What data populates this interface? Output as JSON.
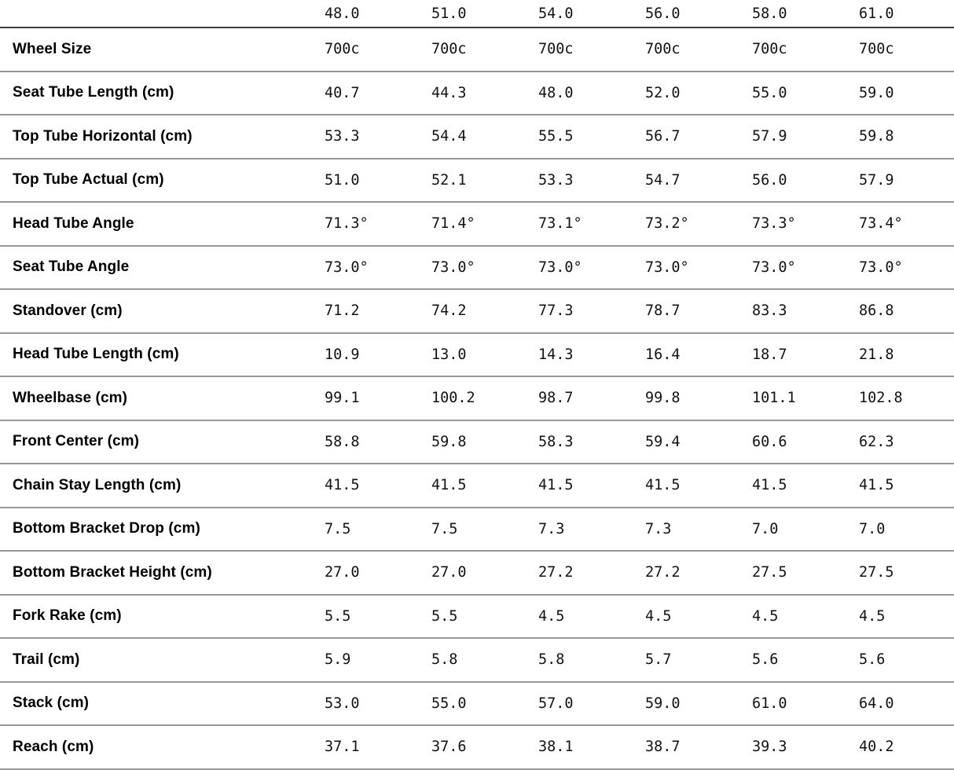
{
  "colors": {
    "background": "#ffffff",
    "header_rule": "#3d3d3d",
    "row_rule": "#979797",
    "label_text": "#000000",
    "value_text": "#131313"
  },
  "chart_data": {
    "type": "table",
    "description": "Bicycle frame geometry specification table; columns are frame sizes, rows are geometry measurements",
    "columns": [
      "48.0",
      "51.0",
      "54.0",
      "56.0",
      "58.0",
      "61.0"
    ],
    "rows": [
      {
        "label": "Wheel Size",
        "values": [
          "700c",
          "700c",
          "700c",
          "700c",
          "700c",
          "700c"
        ]
      },
      {
        "label": "Seat Tube Length (cm)",
        "values": [
          "40.7",
          "44.3",
          "48.0",
          "52.0",
          "55.0",
          "59.0"
        ]
      },
      {
        "label": "Top Tube Horizontal (cm)",
        "values": [
          "53.3",
          "54.4",
          "55.5",
          "56.7",
          "57.9",
          "59.8"
        ]
      },
      {
        "label": "Top Tube Actual (cm)",
        "values": [
          "51.0",
          "52.1",
          "53.3",
          "54.7",
          "56.0",
          "57.9"
        ]
      },
      {
        "label": "Head Tube Angle",
        "values": [
          "71.3°",
          "71.4°",
          "73.1°",
          "73.2°",
          "73.3°",
          "73.4°"
        ]
      },
      {
        "label": "Seat Tube Angle",
        "values": [
          "73.0°",
          "73.0°",
          "73.0°",
          "73.0°",
          "73.0°",
          "73.0°"
        ]
      },
      {
        "label": "Standover (cm)",
        "values": [
          "71.2",
          "74.2",
          "77.3",
          "78.7",
          "83.3",
          "86.8"
        ]
      },
      {
        "label": "Head Tube Length (cm)",
        "values": [
          "10.9",
          "13.0",
          "14.3",
          "16.4",
          "18.7",
          "21.8"
        ]
      },
      {
        "label": "Wheelbase (cm)",
        "values": [
          "99.1",
          "100.2",
          "98.7",
          "99.8",
          "101.1",
          "102.8"
        ]
      },
      {
        "label": "Front Center (cm)",
        "values": [
          "58.8",
          "59.8",
          "58.3",
          "59.4",
          "60.6",
          "62.3"
        ]
      },
      {
        "label": "Chain Stay Length (cm)",
        "values": [
          "41.5",
          "41.5",
          "41.5",
          "41.5",
          "41.5",
          "41.5"
        ]
      },
      {
        "label": "Bottom Bracket Drop (cm)",
        "values": [
          "7.5",
          "7.5",
          "7.3",
          "7.3",
          "7.0",
          "7.0"
        ]
      },
      {
        "label": "Bottom Bracket Height (cm)",
        "values": [
          "27.0",
          "27.0",
          "27.2",
          "27.2",
          "27.5",
          "27.5"
        ]
      },
      {
        "label": "Fork Rake (cm)",
        "values": [
          "5.5",
          "5.5",
          "4.5",
          "4.5",
          "4.5",
          "4.5"
        ]
      },
      {
        "label": "Trail (cm)",
        "values": [
          "5.9",
          "5.8",
          "5.8",
          "5.7",
          "5.6",
          "5.6"
        ]
      },
      {
        "label": "Stack (cm)",
        "values": [
          "53.0",
          "55.0",
          "57.0",
          "59.0",
          "61.0",
          "64.0"
        ]
      },
      {
        "label": "Reach (cm)",
        "values": [
          "37.1",
          "37.6",
          "38.1",
          "38.7",
          "39.3",
          "40.2"
        ]
      }
    ]
  }
}
